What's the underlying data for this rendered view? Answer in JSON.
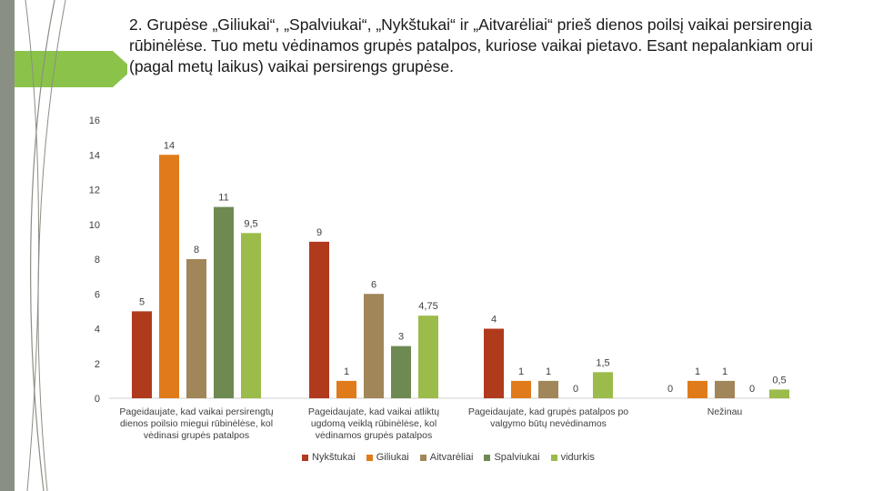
{
  "title": "2.   Grupėse „Giliukai“, „Spalviukai“, „Nykštukai“ ir „Aitvarėliai“ prieš dienos poilsį vaikai persirengia rūbinėlėse. Tuo metu vėdinamos grupės patalpos, kuriose vaikai pietavo. Esant nepalankiam orui (pagal metų laikus) vaikai persirengs grupėse.",
  "chart_data": {
    "type": "bar",
    "title": "",
    "xlabel": "",
    "ylabel": "",
    "ylim": [
      0,
      16
    ],
    "yticks": [
      0,
      2,
      4,
      6,
      8,
      10,
      12,
      14,
      16
    ],
    "grid": false,
    "legend_position": "bottom",
    "categories": [
      "Pageidaujate, kad vaikai persirengtų dienos poilsio miegui rūbinėlėse, kol vėdinasi grupės patalpos",
      "Pageidaujate, kad vaikai atliktų ugdomą veiklą rūbinėlėse, kol vėdinamos grupės patalpos",
      "Pageidaujate, kad grupės patalpos po valgymo būtų nevėdinamos",
      "Nežinau"
    ],
    "series": [
      {
        "name": "Nykštukai",
        "color": "#b03a1c",
        "values": [
          5,
          9,
          4,
          0
        ],
        "labels": [
          "5",
          "9",
          "4",
          "0"
        ]
      },
      {
        "name": "Giliukai",
        "color": "#e07b1b",
        "values": [
          14,
          1,
          1,
          1
        ],
        "labels": [
          "14",
          "1",
          "1",
          "1"
        ]
      },
      {
        "name": "Aitvarėliai",
        "color": "#a08658",
        "values": [
          8,
          6,
          1,
          1
        ],
        "labels": [
          "8",
          "6",
          "1",
          "1"
        ]
      },
      {
        "name": "Spalviukai",
        "color": "#6e8a52",
        "values": [
          11,
          3,
          0,
          0
        ],
        "labels": [
          "11",
          "3",
          "0",
          "0"
        ]
      },
      {
        "name": "vidurkis",
        "color": "#9bbb4a",
        "values": [
          9.5,
          4.75,
          1.5,
          0.5
        ],
        "labels": [
          "9,5",
          "4,75",
          "1,5",
          "0,5"
        ]
      }
    ]
  }
}
